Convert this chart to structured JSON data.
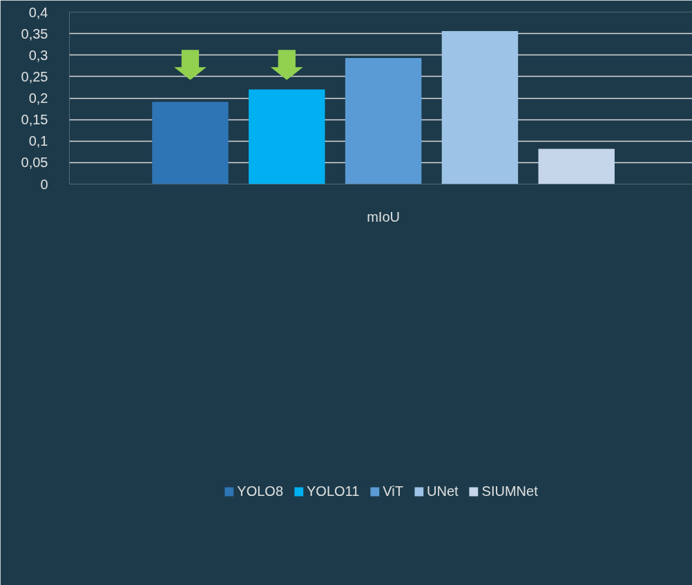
{
  "chart_data": {
    "type": "bar",
    "categories": [
      "mIoU"
    ],
    "series": [
      {
        "name": "YOLO8",
        "color": "#2e75b6",
        "values": [
          0.191
        ]
      },
      {
        "name": "YOLO11",
        "color": "#00b0f0",
        "values": [
          0.22
        ]
      },
      {
        "name": "ViT",
        "color": "#5b9bd5",
        "values": [
          0.293
        ]
      },
      {
        "name": "UNet",
        "color": "#9dc3e6",
        "values": [
          0.356
        ]
      },
      {
        "name": "SIUMNet",
        "color": "#c5d5ea",
        "values": [
          0.082
        ]
      }
    ],
    "ylim": [
      0,
      0.4
    ],
    "yticks": [
      {
        "value": 0,
        "label": "0"
      },
      {
        "value": 0.05,
        "label": "0,05"
      },
      {
        "value": 0.1,
        "label": "0,1"
      },
      {
        "value": 0.15,
        "label": "0,15"
      },
      {
        "value": 0.2,
        "label": "0,2"
      },
      {
        "value": 0.25,
        "label": "0,25"
      },
      {
        "value": 0.3,
        "label": "0,3"
      },
      {
        "value": 0.35,
        "label": "0,35"
      },
      {
        "value": 0.4,
        "label": "0,4"
      }
    ],
    "grid": "y",
    "legend": "bottom"
  }
}
